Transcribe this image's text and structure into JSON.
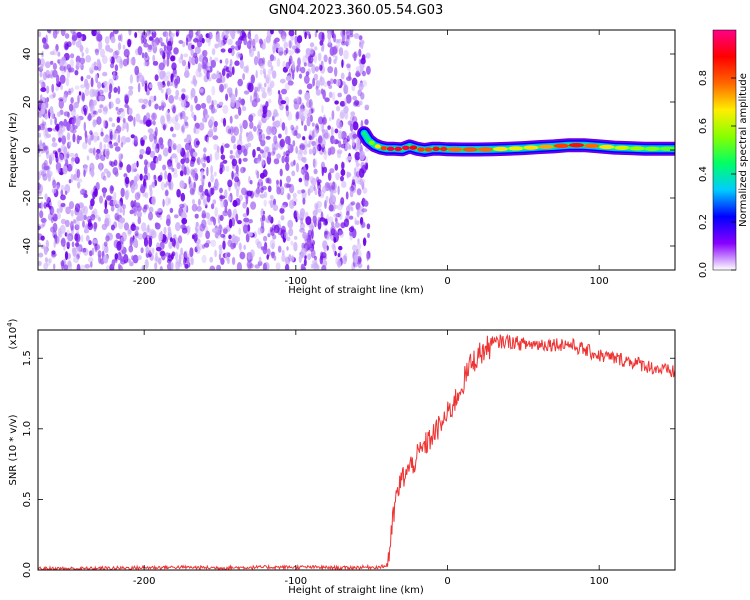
{
  "title": "GN04.2023.360.05.54.G03",
  "chart_data": [
    {
      "type": "heatmap",
      "xlabel": "Height of straight line (km)",
      "ylabel": "Frequency (Hz)",
      "xlim": [
        -270,
        150
      ],
      "ylim": [
        -50,
        50
      ],
      "x_ticks": [
        -200,
        -100,
        0,
        100
      ],
      "y_ticks": [
        -40,
        -20,
        0,
        20,
        40
      ],
      "noise_region_x": [
        -270,
        -52
      ],
      "signal_track": {
        "x": [
          -55,
          -52,
          -48,
          -44,
          -40,
          -35,
          -30,
          -25,
          -20,
          -15,
          -10,
          -5,
          0,
          10,
          20,
          30,
          40,
          50,
          60,
          70,
          80,
          90,
          100,
          110,
          120,
          130,
          140,
          150
        ],
        "y": [
          7,
          4,
          2,
          1,
          0.5,
          0.5,
          0.3,
          1.5,
          0.5,
          0,
          0.5,
          0.5,
          0.3,
          0.2,
          0.2,
          0.3,
          0.5,
          0.8,
          1.2,
          1.5,
          2,
          2,
          1.5,
          1,
          0.8,
          0.5,
          0.5,
          0.5
        ],
        "amplitude": [
          0.3,
          0.5,
          0.6,
          0.75,
          0.9,
          0.95,
          0.9,
          0.95,
          0.85,
          0.8,
          0.85,
          0.9,
          0.8,
          0.75,
          0.85,
          0.7,
          0.65,
          0.65,
          0.7,
          0.75,
          0.9,
          0.85,
          0.7,
          0.65,
          0.6,
          0.55,
          0.55,
          0.5
        ]
      },
      "colorbar": {
        "label": "Normalized spectral amplitude",
        "ticks": [
          "0.0",
          "0.2",
          "0.4",
          "0.6",
          "0.8"
        ],
        "tick_values": [
          0,
          0.2,
          0.4,
          0.6,
          0.8
        ],
        "range": [
          0,
          1
        ],
        "colors": [
          "#ffffff",
          "#8800ff",
          "#0000ff",
          "#00ccff",
          "#00ff66",
          "#88ff00",
          "#ffee00",
          "#ff6600",
          "#ff0000",
          "#ff0088"
        ]
      }
    },
    {
      "type": "line",
      "xlabel": "Height of straight line (km)",
      "ylabel": "SNR (10 * v/v)",
      "y_scale_note": "(x10",
      "y_scale_exp": "4",
      "y_scale_close": ")",
      "xlim": [
        -270,
        150
      ],
      "ylim": [
        0,
        1.7
      ],
      "x_ticks": [
        -200,
        -100,
        0,
        100
      ],
      "y_ticks": [
        "0.0",
        "0.5",
        "1.0",
        "1.5"
      ],
      "y_tick_values": [
        0,
        0.5,
        1.0,
        1.5
      ],
      "color": "#ee3333",
      "series": [
        {
          "x": [
            -270,
            -240,
            -210,
            -180,
            -150,
            -120,
            -90,
            -70,
            -55,
            -45,
            -40,
            -38,
            -36,
            -34,
            -32,
            -30,
            -25,
            -20,
            -15,
            -10,
            -5,
            0,
            5,
            10,
            15,
            20,
            25,
            30,
            35,
            40,
            50,
            60,
            70,
            80,
            90,
            100,
            110,
            120,
            130,
            140,
            150
          ],
          "y": [
            0.01,
            0.01,
            0.015,
            0.02,
            0.015,
            0.02,
            0.02,
            0.015,
            0.02,
            0.02,
            0.03,
            0.15,
            0.35,
            0.5,
            0.58,
            0.65,
            0.72,
            0.8,
            0.88,
            0.95,
            1.02,
            1.1,
            1.2,
            1.32,
            1.45,
            1.52,
            1.56,
            1.6,
            1.62,
            1.62,
            1.6,
            1.6,
            1.6,
            1.6,
            1.56,
            1.52,
            1.5,
            1.48,
            1.45,
            1.42,
            1.4
          ]
        }
      ]
    }
  ]
}
